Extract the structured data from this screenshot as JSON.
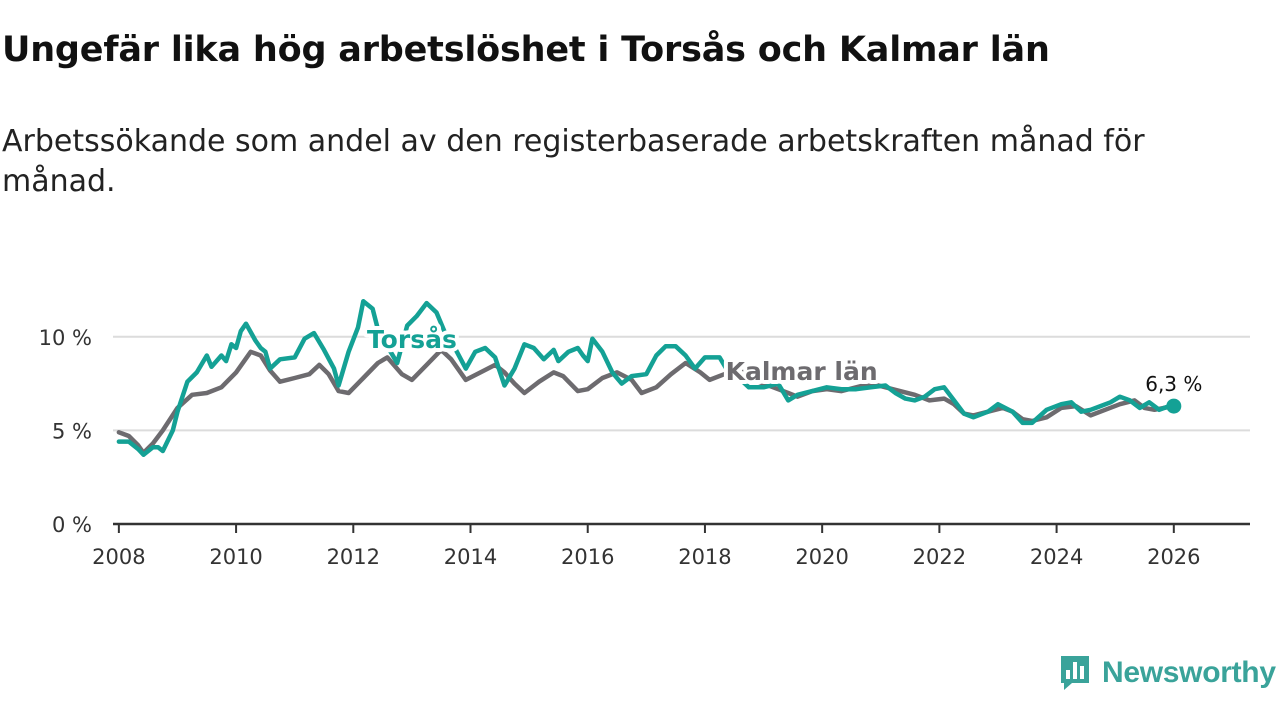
{
  "title": "Ungefär lika hög arbetslöshet i Torsås och Kalmar län",
  "subtitle": "Arbetssökande som andel av den registerbaserade arbetskraften månad för månad.",
  "brand": {
    "name": "Newsworthy",
    "color": "#3aa39a",
    "icon": "bar-chart-icon"
  },
  "chart_data": {
    "type": "line",
    "title": "Ungefär lika hög arbetslöshet i Torsås och Kalmar län",
    "xlabel": "",
    "ylabel": "",
    "xlim": [
      2007.9,
      2027.3
    ],
    "ylim": [
      0,
      12.5
    ],
    "x_ticks": [
      {
        "value": 2008,
        "label": "2008"
      },
      {
        "value": 2010,
        "label": "2010"
      },
      {
        "value": 2012,
        "label": "2012"
      },
      {
        "value": 2014,
        "label": "2014"
      },
      {
        "value": 2016,
        "label": "2016"
      },
      {
        "value": 2018,
        "label": "2018"
      },
      {
        "value": 2020,
        "label": "2020"
      },
      {
        "value": 2022,
        "label": "2022"
      },
      {
        "value": 2024,
        "label": "2024"
      },
      {
        "value": 2026,
        "label": "2026"
      }
    ],
    "y_ticks": [
      {
        "value": 0,
        "label": "0 %"
      },
      {
        "value": 5,
        "label": "5 %"
      },
      {
        "value": 10,
        "label": "10 %"
      }
    ],
    "grid": true,
    "series": [
      {
        "name": "Kalmar län",
        "color": "#6d6b6f",
        "label_at": {
          "x": 2019.65,
          "y": 7.7
        },
        "points": [
          [
            2008.0,
            4.9
          ],
          [
            2008.17,
            4.7
          ],
          [
            2008.33,
            4.2
          ],
          [
            2008.42,
            3.8
          ],
          [
            2008.58,
            4.3
          ],
          [
            2008.75,
            5.0
          ],
          [
            2009.0,
            6.2
          ],
          [
            2009.25,
            6.9
          ],
          [
            2009.5,
            7.0
          ],
          [
            2009.75,
            7.3
          ],
          [
            2010.0,
            8.1
          ],
          [
            2010.25,
            9.2
          ],
          [
            2010.42,
            9.0
          ],
          [
            2010.58,
            8.2
          ],
          [
            2010.75,
            7.6
          ],
          [
            2011.0,
            7.8
          ],
          [
            2011.25,
            8.0
          ],
          [
            2011.42,
            8.5
          ],
          [
            2011.58,
            8.0
          ],
          [
            2011.75,
            7.1
          ],
          [
            2011.92,
            7.0
          ],
          [
            2012.17,
            7.8
          ],
          [
            2012.42,
            8.6
          ],
          [
            2012.58,
            8.9
          ],
          [
            2012.83,
            8.0
          ],
          [
            2013.0,
            7.7
          ],
          [
            2013.25,
            8.5
          ],
          [
            2013.5,
            9.3
          ],
          [
            2013.67,
            8.8
          ],
          [
            2013.92,
            7.7
          ],
          [
            2014.17,
            8.1
          ],
          [
            2014.42,
            8.5
          ],
          [
            2014.58,
            8.1
          ],
          [
            2014.75,
            7.5
          ],
          [
            2014.92,
            7.0
          ],
          [
            2015.17,
            7.6
          ],
          [
            2015.42,
            8.1
          ],
          [
            2015.58,
            7.9
          ],
          [
            2015.83,
            7.1
          ],
          [
            2016.0,
            7.2
          ],
          [
            2016.25,
            7.8
          ],
          [
            2016.5,
            8.1
          ],
          [
            2016.75,
            7.7
          ],
          [
            2016.92,
            7.0
          ],
          [
            2017.17,
            7.3
          ],
          [
            2017.42,
            8.0
          ],
          [
            2017.67,
            8.6
          ],
          [
            2017.92,
            8.1
          ],
          [
            2018.08,
            7.7
          ],
          [
            2018.33,
            8.0
          ],
          [
            2018.58,
            8.3
          ],
          [
            2018.75,
            7.8
          ],
          [
            2019.0,
            7.5
          ],
          [
            2019.25,
            7.2
          ],
          [
            2019.42,
            7.0
          ],
          [
            2019.58,
            6.8
          ],
          [
            2019.83,
            7.1
          ],
          [
            2020.08,
            7.2
          ],
          [
            2020.33,
            7.1
          ],
          [
            2020.58,
            7.3
          ],
          [
            2020.83,
            7.5
          ],
          [
            2021.08,
            7.3
          ],
          [
            2021.33,
            7.1
          ],
          [
            2021.58,
            6.9
          ],
          [
            2021.83,
            6.6
          ],
          [
            2022.08,
            6.7
          ],
          [
            2022.25,
            6.4
          ],
          [
            2022.42,
            5.9
          ],
          [
            2022.58,
            5.8
          ],
          [
            2022.83,
            6.0
          ],
          [
            2023.08,
            6.2
          ],
          [
            2023.25,
            6.0
          ],
          [
            2023.42,
            5.6
          ],
          [
            2023.58,
            5.5
          ],
          [
            2023.83,
            5.7
          ],
          [
            2024.08,
            6.2
          ],
          [
            2024.33,
            6.3
          ],
          [
            2024.58,
            5.8
          ],
          [
            2024.83,
            6.1
          ],
          [
            2025.08,
            6.4
          ],
          [
            2025.33,
            6.6
          ],
          [
            2025.5,
            6.2
          ],
          [
            2025.67,
            6.1
          ],
          [
            2025.83,
            6.2
          ],
          [
            2026.0,
            6.3
          ]
        ]
      },
      {
        "name": "Torsås",
        "color": "#14a195",
        "label_at": {
          "x": 2013.0,
          "y": 9.4
        },
        "end_value": 6.3,
        "end_label": "6,3 %",
        "points": [
          [
            2008.0,
            4.4
          ],
          [
            2008.17,
            4.4
          ],
          [
            2008.33,
            4.0
          ],
          [
            2008.42,
            3.7
          ],
          [
            2008.58,
            4.1
          ],
          [
            2008.67,
            4.1
          ],
          [
            2008.75,
            3.9
          ],
          [
            2008.92,
            5.0
          ],
          [
            2009.0,
            6.0
          ],
          [
            2009.17,
            7.6
          ],
          [
            2009.33,
            8.1
          ],
          [
            2009.5,
            9.0
          ],
          [
            2009.58,
            8.4
          ],
          [
            2009.75,
            9.0
          ],
          [
            2009.83,
            8.7
          ],
          [
            2009.92,
            9.6
          ],
          [
            2010.0,
            9.4
          ],
          [
            2010.08,
            10.3
          ],
          [
            2010.17,
            10.7
          ],
          [
            2010.33,
            9.8
          ],
          [
            2010.42,
            9.4
          ],
          [
            2010.5,
            9.2
          ],
          [
            2010.58,
            8.3
          ],
          [
            2010.75,
            8.8
          ],
          [
            2011.0,
            8.9
          ],
          [
            2011.17,
            9.9
          ],
          [
            2011.33,
            10.2
          ],
          [
            2011.5,
            9.3
          ],
          [
            2011.67,
            8.3
          ],
          [
            2011.75,
            7.4
          ],
          [
            2011.92,
            9.2
          ],
          [
            2012.08,
            10.5
          ],
          [
            2012.17,
            11.9
          ],
          [
            2012.33,
            11.5
          ],
          [
            2012.42,
            10.4
          ],
          [
            2012.58,
            9.5
          ],
          [
            2012.75,
            8.6
          ],
          [
            2012.92,
            10.6
          ],
          [
            2013.08,
            11.1
          ],
          [
            2013.25,
            11.8
          ],
          [
            2013.42,
            11.3
          ],
          [
            2013.58,
            10.1
          ],
          [
            2013.75,
            9.3
          ],
          [
            2013.92,
            8.3
          ],
          [
            2014.08,
            9.2
          ],
          [
            2014.25,
            9.4
          ],
          [
            2014.42,
            8.9
          ],
          [
            2014.58,
            7.4
          ],
          [
            2014.75,
            8.3
          ],
          [
            2014.92,
            9.6
          ],
          [
            2015.08,
            9.4
          ],
          [
            2015.25,
            8.8
          ],
          [
            2015.42,
            9.3
          ],
          [
            2015.5,
            8.7
          ],
          [
            2015.67,
            9.2
          ],
          [
            2015.83,
            9.4
          ],
          [
            2015.92,
            9.0
          ],
          [
            2016.0,
            8.7
          ],
          [
            2016.08,
            9.9
          ],
          [
            2016.25,
            9.2
          ],
          [
            2016.42,
            8.1
          ],
          [
            2016.58,
            7.5
          ],
          [
            2016.75,
            7.9
          ],
          [
            2017.0,
            8.0
          ],
          [
            2017.17,
            9.0
          ],
          [
            2017.33,
            9.5
          ],
          [
            2017.5,
            9.5
          ],
          [
            2017.67,
            9.0
          ],
          [
            2017.83,
            8.3
          ],
          [
            2018.0,
            8.9
          ],
          [
            2018.25,
            8.9
          ],
          [
            2018.42,
            8.0
          ],
          [
            2018.58,
            7.8
          ],
          [
            2018.75,
            7.3
          ],
          [
            2019.0,
            7.3
          ],
          [
            2019.25,
            7.5
          ],
          [
            2019.42,
            6.6
          ],
          [
            2019.58,
            6.9
          ],
          [
            2019.83,
            7.1
          ],
          [
            2020.08,
            7.3
          ],
          [
            2020.33,
            7.2
          ],
          [
            2020.58,
            7.2
          ],
          [
            2020.83,
            7.3
          ],
          [
            2021.08,
            7.4
          ],
          [
            2021.25,
            7.0
          ],
          [
            2021.42,
            6.7
          ],
          [
            2021.58,
            6.6
          ],
          [
            2021.75,
            6.8
          ],
          [
            2021.92,
            7.2
          ],
          [
            2022.08,
            7.3
          ],
          [
            2022.25,
            6.6
          ],
          [
            2022.42,
            5.9
          ],
          [
            2022.58,
            5.7
          ],
          [
            2022.83,
            6.0
          ],
          [
            2023.0,
            6.4
          ],
          [
            2023.25,
            6.0
          ],
          [
            2023.42,
            5.4
          ],
          [
            2023.58,
            5.4
          ],
          [
            2023.83,
            6.1
          ],
          [
            2024.08,
            6.4
          ],
          [
            2024.25,
            6.5
          ],
          [
            2024.42,
            6.0
          ],
          [
            2024.58,
            6.1
          ],
          [
            2024.75,
            6.3
          ],
          [
            2024.92,
            6.5
          ],
          [
            2025.08,
            6.8
          ],
          [
            2025.25,
            6.6
          ],
          [
            2025.42,
            6.2
          ],
          [
            2025.58,
            6.5
          ],
          [
            2025.75,
            6.1
          ],
          [
            2025.92,
            6.3
          ],
          [
            2026.0,
            6.3
          ]
        ]
      }
    ]
  }
}
